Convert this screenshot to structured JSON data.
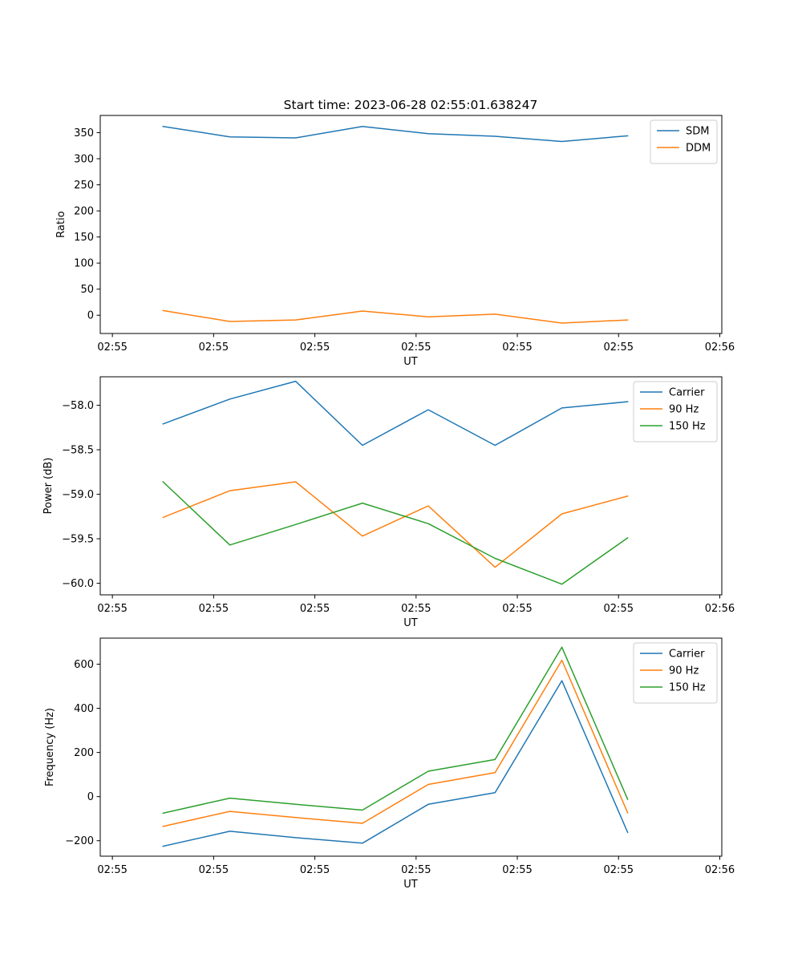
{
  "chart_data": [
    {
      "type": "line",
      "title": "Start time: 2023-06-28 02:55:01.638247",
      "xlabel": "UT",
      "ylabel": "Ratio",
      "x_tick_labels": [
        "02:55",
        "02:55",
        "02:55",
        "02:55",
        "02:55",
        "02:55",
        "02:56"
      ],
      "x_tick_seconds": [
        1.0,
        2.0,
        3.0,
        4.0,
        5.0,
        6.0,
        7.0
      ],
      "xlim_seconds": [
        0.88,
        7.02
      ],
      "x_seconds": [
        1.5,
        2.16,
        2.81,
        3.47,
        4.12,
        4.78,
        5.44,
        6.09
      ],
      "ylim": [
        -35,
        383
      ],
      "y_ticks": [
        0,
        50,
        100,
        150,
        200,
        250,
        300,
        350
      ],
      "grid": false,
      "legend_position": "upper right",
      "series": [
        {
          "name": "SDM",
          "color": "#1f77b4",
          "values": [
            362,
            342,
            340,
            362,
            348,
            343,
            333,
            344
          ]
        },
        {
          "name": "DDM",
          "color": "#ff7f0e",
          "values": [
            9,
            -12,
            -9,
            8,
            -3,
            2,
            -15,
            -9
          ]
        }
      ]
    },
    {
      "type": "line",
      "title": "",
      "xlabel": "UT",
      "ylabel": "Power (dB)",
      "x_tick_labels": [
        "02:55",
        "02:55",
        "02:55",
        "02:55",
        "02:55",
        "02:55",
        "02:56"
      ],
      "x_tick_seconds": [
        1.0,
        2.0,
        3.0,
        4.0,
        5.0,
        6.0,
        7.0
      ],
      "xlim_seconds": [
        0.88,
        7.02
      ],
      "x_seconds": [
        1.5,
        2.16,
        2.81,
        3.47,
        4.12,
        4.78,
        5.44,
        6.09
      ],
      "ylim": [
        -60.13,
        -57.68
      ],
      "y_ticks": [
        -60.0,
        -59.5,
        -59.0,
        -58.5,
        -58.0
      ],
      "y_tick_labels": [
        "−60.0",
        "−59.5",
        "−59.0",
        "−58.5",
        "−58.0"
      ],
      "grid": false,
      "legend_position": "upper right",
      "series": [
        {
          "name": "Carrier",
          "color": "#1f77b4",
          "values": [
            -58.21,
            -57.93,
            -57.73,
            -58.45,
            -58.05,
            -58.45,
            -58.03,
            -57.96
          ]
        },
        {
          "name": "90 Hz",
          "color": "#ff7f0e",
          "values": [
            -59.26,
            -58.96,
            -58.86,
            -59.47,
            -59.13,
            -59.82,
            -59.22,
            -59.02
          ]
        },
        {
          "name": "150 Hz",
          "color": "#2ca02c",
          "values": [
            -58.86,
            -59.57,
            -59.34,
            -59.1,
            -59.33,
            -59.72,
            -60.01,
            -59.49
          ]
        }
      ]
    },
    {
      "type": "line",
      "title": "",
      "xlabel": "UT",
      "ylabel": "Frequency (Hz)",
      "x_tick_labels": [
        "02:55",
        "02:55",
        "02:55",
        "02:55",
        "02:55",
        "02:55",
        "02:56"
      ],
      "x_tick_seconds": [
        1.0,
        2.0,
        3.0,
        4.0,
        5.0,
        6.0,
        7.0
      ],
      "xlim_seconds": [
        0.88,
        7.02
      ],
      "x_seconds": [
        1.5,
        2.16,
        2.81,
        3.47,
        4.12,
        4.78,
        5.44,
        6.09
      ],
      "ylim": [
        -270,
        718
      ],
      "y_ticks": [
        -200,
        0,
        200,
        400,
        600
      ],
      "y_tick_labels": [
        "−200",
        "0",
        "200",
        "400",
        "600"
      ],
      "grid": false,
      "legend_position": "upper right",
      "series": [
        {
          "name": "Carrier",
          "color": "#1f77b4",
          "values": [
            -225,
            -157,
            -186,
            -211,
            -35,
            18,
            525,
            -162
          ]
        },
        {
          "name": "90 Hz",
          "color": "#ff7f0e",
          "values": [
            -135,
            -67,
            -95,
            -121,
            55,
            109,
            618,
            -73
          ]
        },
        {
          "name": "150 Hz",
          "color": "#2ca02c",
          "values": [
            -75,
            -7,
            -35,
            -61,
            115,
            168,
            677,
            -12
          ]
        }
      ]
    }
  ]
}
